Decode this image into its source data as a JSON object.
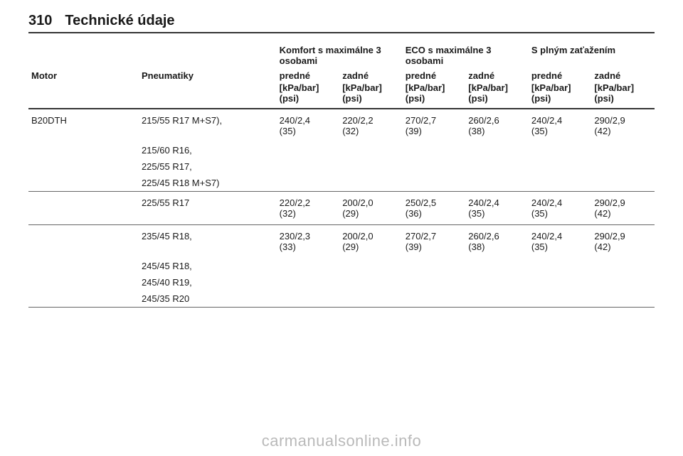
{
  "page_number": "310",
  "page_title": "Technické údaje",
  "watermark": "carmanualsonline.info",
  "headers": {
    "engine": "Motor",
    "tyres": "Pneumatiky",
    "group_comfort": "Komfort s maximálne 3 osobami",
    "group_eco": "ECO s maximálne 3 osobami",
    "group_full": "S plným zaťažením",
    "front": "predné",
    "rear": "zadné",
    "unit1": "[kPa/bar]",
    "unit2": "(psi)"
  },
  "engine": "B20DTH",
  "rows": [
    {
      "tyres": [
        "215/55 R17 M+S7),",
        "215/60 R16,",
        "225/55 R17,",
        "225/45 R18 M+S7)"
      ],
      "vals": [
        {
          "a": "240/2,4",
          "b": "(35)"
        },
        {
          "a": "220/2,2",
          "b": "(32)"
        },
        {
          "a": "270/2,7",
          "b": "(39)"
        },
        {
          "a": "260/2,6",
          "b": "(38)"
        },
        {
          "a": "240/2,4",
          "b": "(35)"
        },
        {
          "a": "290/2,9",
          "b": "(42)"
        }
      ]
    },
    {
      "tyres": [
        "225/55 R17"
      ],
      "vals": [
        {
          "a": "220/2,2",
          "b": "(32)"
        },
        {
          "a": "200/2,0",
          "b": "(29)"
        },
        {
          "a": "250/2,5",
          "b": "(36)"
        },
        {
          "a": "240/2,4",
          "b": "(35)"
        },
        {
          "a": "240/2,4",
          "b": "(35)"
        },
        {
          "a": "290/2,9",
          "b": "(42)"
        }
      ]
    },
    {
      "tyres": [
        "235/45 R18,",
        "245/45 R18,",
        "245/40 R19,",
        "245/35 R20"
      ],
      "vals": [
        {
          "a": "230/2,3",
          "b": "(33)"
        },
        {
          "a": "200/2,0",
          "b": "(29)"
        },
        {
          "a": "270/2,7",
          "b": "(39)"
        },
        {
          "a": "260/2,6",
          "b": "(38)"
        },
        {
          "a": "240/2,4",
          "b": "(35)"
        },
        {
          "a": "290/2,9",
          "b": "(42)"
        }
      ]
    }
  ]
}
